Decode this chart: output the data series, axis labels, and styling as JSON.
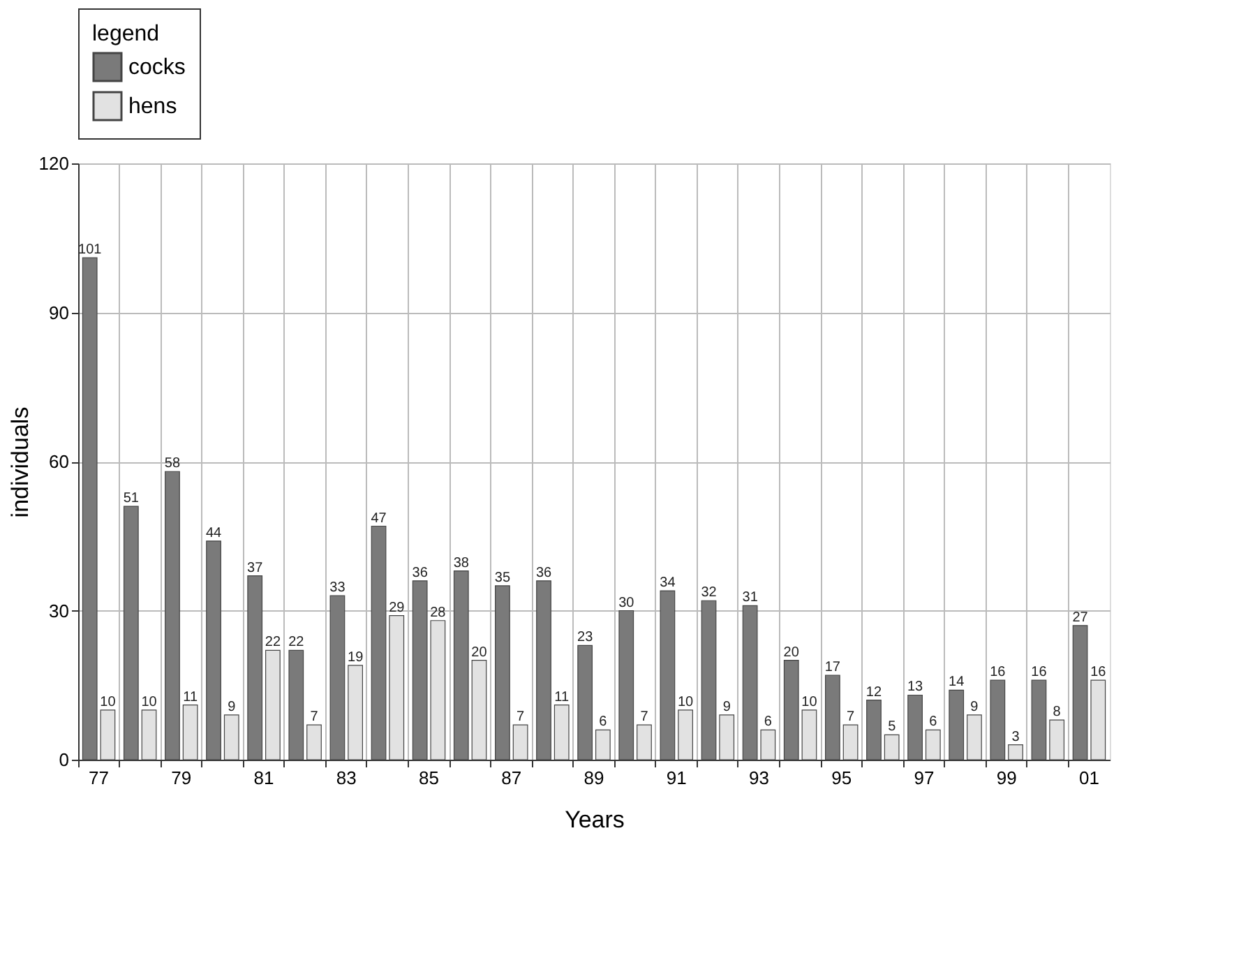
{
  "chart_data": {
    "type": "bar",
    "xlabel": "Years",
    "ylabel": "individuals",
    "legend_title": "legend",
    "legend": "top",
    "grid": true,
    "data_labels": true,
    "categories": [
      "77",
      null,
      "79",
      null,
      "81",
      null,
      "83",
      null,
      "85",
      null,
      "87",
      null,
      "89",
      null,
      "91",
      null,
      "93",
      null,
      "95",
      null,
      "97",
      null,
      "99",
      null,
      "01"
    ],
    "ylim": [
      0,
      120
    ],
    "yticks": [
      0,
      30,
      60,
      90,
      120
    ],
    "series": [
      {
        "name": "cocks",
        "color": "#7a7a7a",
        "values": [
          101,
          51,
          58,
          44,
          37,
          22,
          33,
          47,
          36,
          38,
          35,
          36,
          23,
          30,
          34,
          32,
          31,
          20,
          17,
          12,
          13,
          14,
          16,
          16,
          27
        ]
      },
      {
        "name": "hens",
        "color": "#e2e2e2",
        "values": [
          10,
          10,
          11,
          9,
          22,
          7,
          19,
          29,
          28,
          20,
          7,
          11,
          6,
          7,
          10,
          9,
          6,
          10,
          7,
          5,
          6,
          9,
          3,
          8,
          16
        ]
      }
    ]
  }
}
